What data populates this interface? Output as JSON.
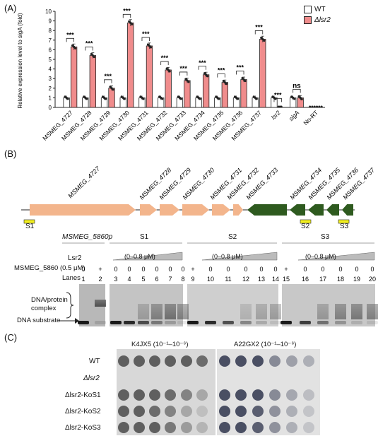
{
  "panelA": {
    "label": "(A)",
    "ylabel": "Relative expression level to sigA (fold)",
    "legend": [
      {
        "name": "WT",
        "color": "#ffffff"
      },
      {
        "name": "Δlsr2",
        "color": "#f08c8c"
      }
    ]
  },
  "chart_data": {
    "type": "bar",
    "ylabel": "Relative expression level to sigA (fold)",
    "ylim": [
      0,
      10
    ],
    "yticks": [
      0,
      1,
      2,
      3,
      4,
      5,
      6,
      7,
      8,
      9,
      10
    ],
    "categories": [
      "MSMEG_4727",
      "MSMEG_4728",
      "MSMEG_4729",
      "MSMEG_4730",
      "MSMEG_4731",
      "MSMEG_4732",
      "MSMEG_4733",
      "MSMEG_4734",
      "MSMEG_4735",
      "MSMEG_4736",
      "MSMEG_4737",
      "lsr2",
      "sigA",
      "No-RT"
    ],
    "series": [
      {
        "name": "WT",
        "values": [
          1.0,
          1.0,
          1.0,
          1.0,
          1.0,
          1.0,
          1.0,
          1.0,
          1.0,
          1.0,
          1.0,
          1.0,
          1.0,
          0.05
        ]
      },
      {
        "name": "Δlsr2",
        "values": [
          6.3,
          5.4,
          2.0,
          8.8,
          6.4,
          3.9,
          2.8,
          3.4,
          2.6,
          2.9,
          7.1,
          0.05,
          1.0,
          0.05
        ]
      }
    ],
    "significance": [
      "***",
      "***",
      "***",
      "***",
      "***",
      "***",
      "***",
      "***",
      "***",
      "***",
      "***",
      "***",
      "ns",
      ""
    ]
  },
  "panelB": {
    "label": "(B)",
    "top_genes": [
      "MSMEG_4727",
      "MSMEG_4728",
      "MSMEG_4729",
      "MSMEG_4730",
      "MSMEG_4731",
      "MSMEG_4732",
      "MSMEG_4733",
      "MSMEG_4734",
      "MSMEG_4735",
      "MSMEG_4736",
      "MSMEG_4737"
    ],
    "gene_color_forward": "#f3b58c",
    "gene_color_reverse": "#2e5a1f",
    "probe_color": "#f2ef21",
    "probes": [
      "S1",
      "S2",
      "S3"
    ],
    "gel_headers": [
      "MSMEG_5860p",
      "S1",
      "S2",
      "S3"
    ],
    "lsr2_label": "Lsr2",
    "conc_label": "(0–0.8 μM)",
    "msmeg_row_label": "MSMEG_5860 (0.5 μM)",
    "lanes_label": "Lanes",
    "plus_row": [
      "0",
      "+",
      "0",
      "0",
      "0",
      "0",
      "0",
      "0",
      "+",
      "0",
      "0",
      "0",
      "0",
      "0",
      "+",
      "0",
      "0",
      "0",
      "0",
      "0"
    ],
    "lane_numbers": [
      "1",
      "2",
      "3",
      "4",
      "5",
      "6",
      "7",
      "8",
      "9",
      "10",
      "11",
      "12",
      "13",
      "14",
      "15",
      "16",
      "17",
      "18",
      "19",
      "20"
    ],
    "complex_label_1": "DNA/protein",
    "complex_label_2": "complex",
    "substrate_label": "DNA substrate"
  },
  "panelC": {
    "label": "(C)",
    "headers": [
      "K4JX5 (10⁻¹–10⁻⁶)",
      "A22GX2 (10⁻¹–10⁻⁶)"
    ],
    "rows": [
      "WT",
      "Δlsr2",
      "Δlsr2-KoS1",
      "Δlsr2-KoS2",
      "Δlsr2-KoS3"
    ]
  }
}
